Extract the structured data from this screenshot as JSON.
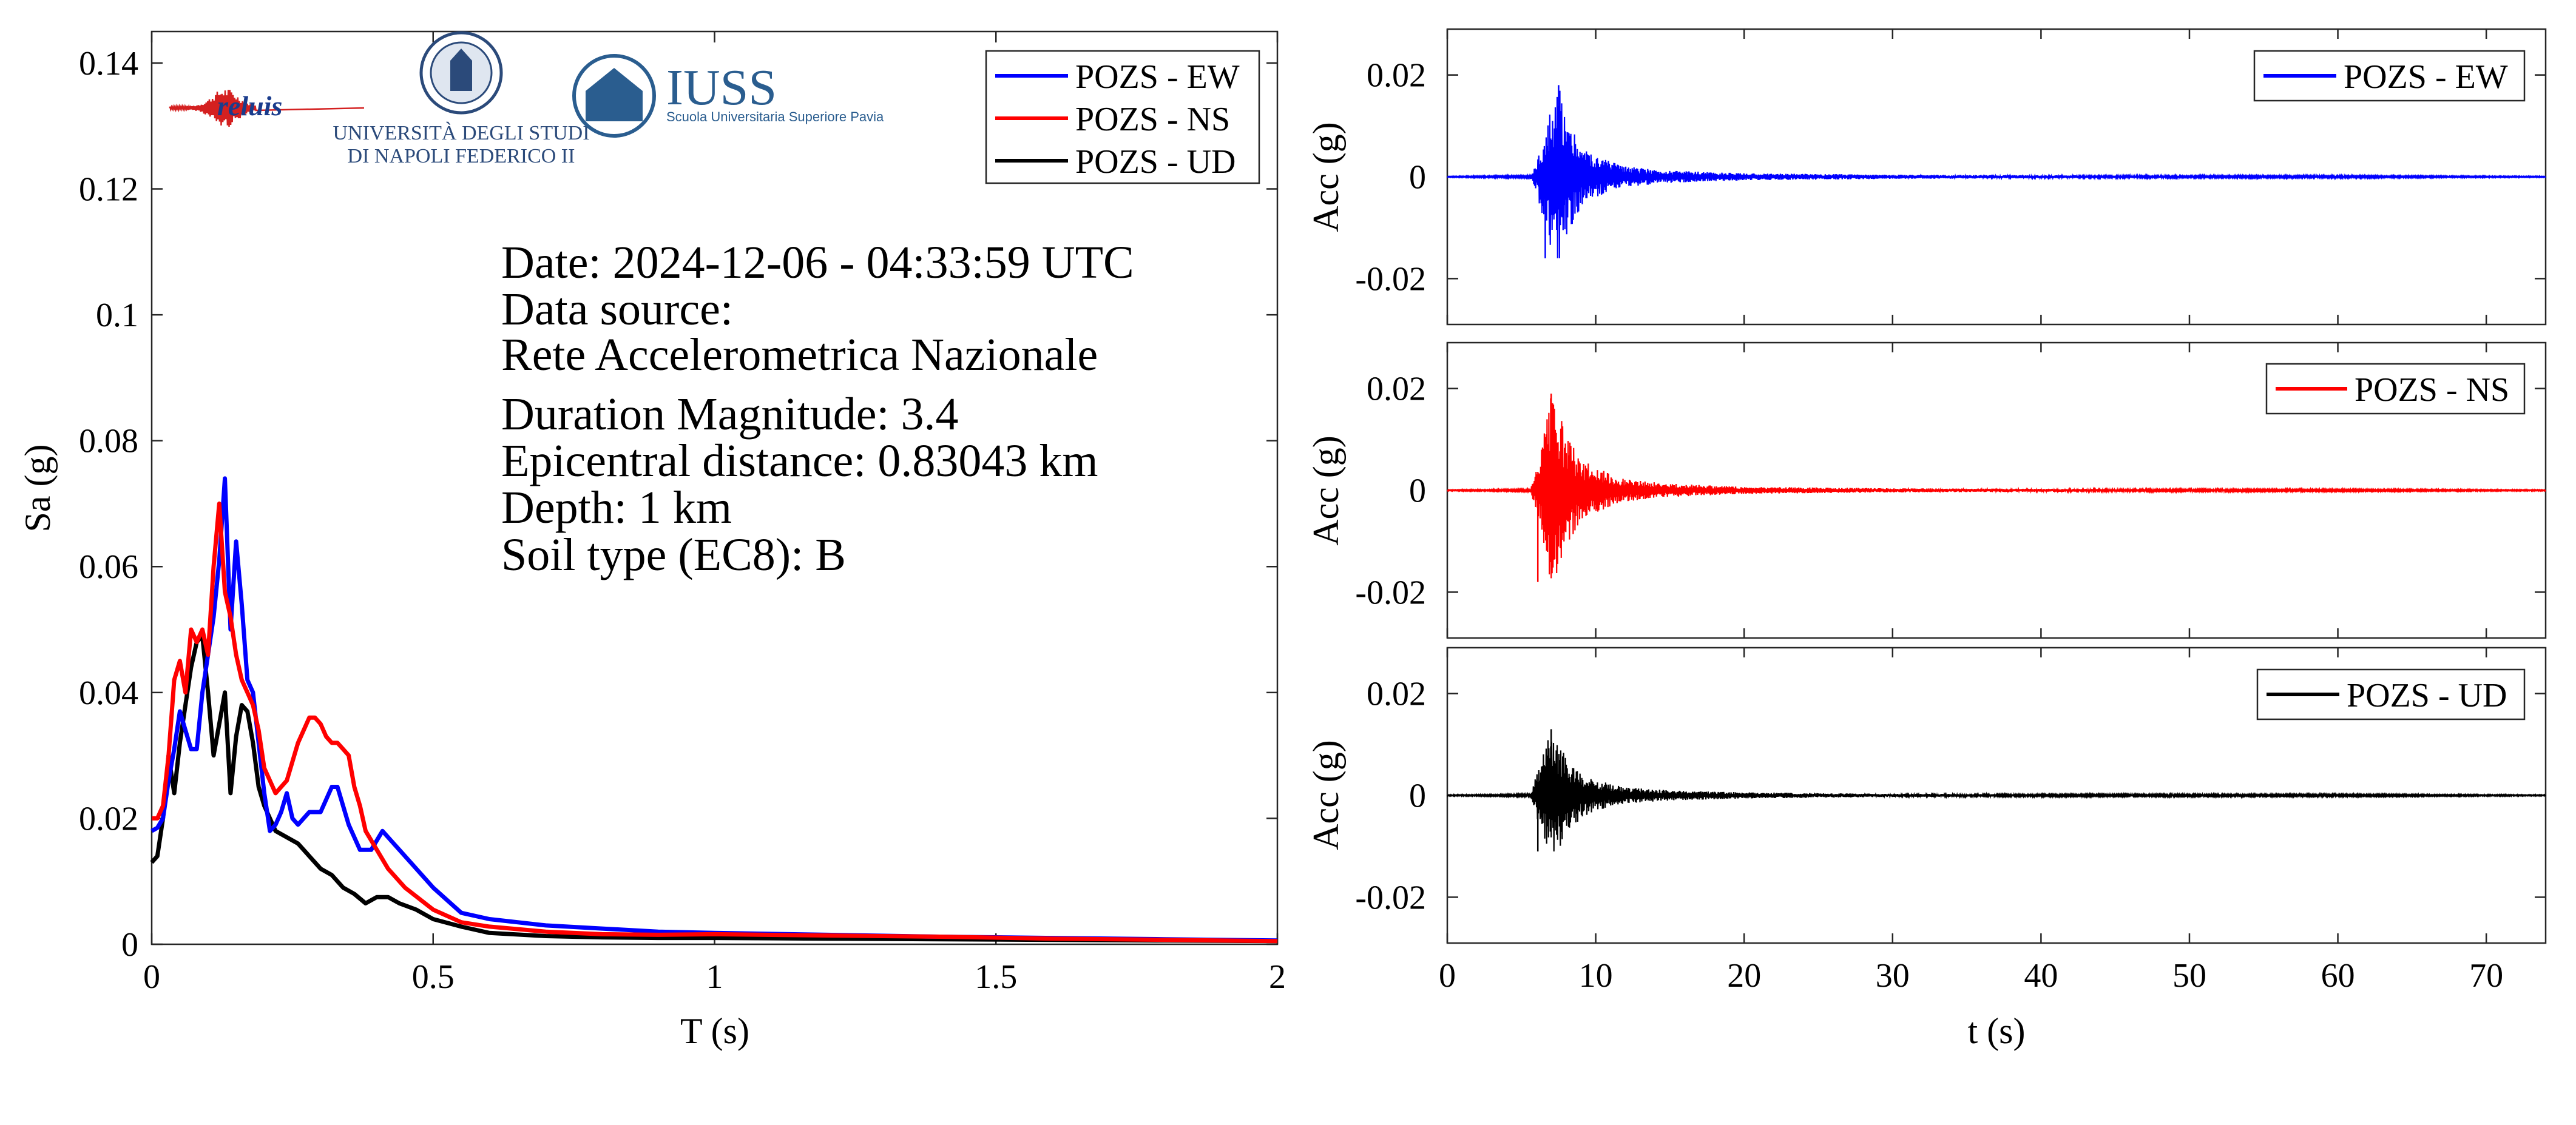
{
  "info": {
    "date": "Date: 2024-12-06 - 04:33:59 UTC",
    "source_label": "Data source:",
    "source_name": "Rete Accelerometrica Nazionale",
    "magnitude": "Duration Magnitude: 3.4",
    "distance": "Epicentral distance: 0.83043 km",
    "depth": "Depth: 1 km",
    "soil": "Soil type (EC8): B"
  },
  "logos": {
    "reluis": "reluis",
    "unina_line1": "UNIVERSITÀ DEGLI STUDI",
    "unina_line2": "DI NAPOLI FEDERICO II",
    "iuss_title": "IUSS",
    "iuss_subtitle": "Scuola Universitaria Superiore Pavia"
  },
  "colors": {
    "EW": "#0000ff",
    "NS": "#ff0000",
    "UD": "#000000"
  },
  "chart_data": [
    {
      "type": "line",
      "id": "spectrum",
      "xlabel": "T (s)",
      "ylabel": "Sa (g)",
      "xlim": [
        0,
        2
      ],
      "ylim": [
        0,
        0.145
      ],
      "xticks": [
        0,
        0.5,
        1,
        1.5,
        2
      ],
      "xtick_labels": [
        "0",
        "0.5",
        "1",
        "1.5",
        "2"
      ],
      "yticks": [
        0,
        0.02,
        0.04,
        0.06,
        0.08,
        0.1,
        0.12,
        0.14
      ],
      "ytick_labels": [
        "0",
        "0.02",
        "0.04",
        "0.06",
        "0.08",
        "0.1",
        "0.12",
        "0.14"
      ],
      "legend_position": "top-right",
      "series": [
        {
          "name": "POZS - EW",
          "color": "#0000ff",
          "x": [
            0,
            0.01,
            0.02,
            0.03,
            0.04,
            0.05,
            0.06,
            0.07,
            0.08,
            0.09,
            0.1,
            0.11,
            0.12,
            0.13,
            0.14,
            0.15,
            0.16,
            0.17,
            0.18,
            0.19,
            0.2,
            0.21,
            0.22,
            0.23,
            0.24,
            0.25,
            0.26,
            0.28,
            0.3,
            0.32,
            0.33,
            0.35,
            0.37,
            0.39,
            0.41,
            0.43,
            0.46,
            0.5,
            0.55,
            0.6,
            0.7,
            0.8,
            0.9,
            1.0,
            1.2,
            1.4,
            1.6,
            1.8,
            2.0
          ],
          "y": [
            0.018,
            0.0185,
            0.02,
            0.026,
            0.031,
            0.037,
            0.034,
            0.031,
            0.031,
            0.04,
            0.046,
            0.052,
            0.061,
            0.074,
            0.05,
            0.064,
            0.054,
            0.042,
            0.04,
            0.032,
            0.024,
            0.018,
            0.019,
            0.021,
            0.024,
            0.02,
            0.019,
            0.021,
            0.021,
            0.025,
            0.025,
            0.019,
            0.015,
            0.015,
            0.018,
            0.016,
            0.013,
            0.009,
            0.005,
            0.004,
            0.003,
            0.0025,
            0.002,
            0.0018,
            0.0015,
            0.0012,
            0.001,
            0.0008,
            0.0006
          ]
        },
        {
          "name": "POZS - NS",
          "color": "#ff0000",
          "x": [
            0,
            0.01,
            0.02,
            0.03,
            0.04,
            0.05,
            0.06,
            0.07,
            0.08,
            0.09,
            0.1,
            0.11,
            0.12,
            0.13,
            0.14,
            0.15,
            0.16,
            0.17,
            0.18,
            0.19,
            0.2,
            0.22,
            0.24,
            0.26,
            0.28,
            0.29,
            0.3,
            0.31,
            0.32,
            0.33,
            0.34,
            0.35,
            0.36,
            0.37,
            0.38,
            0.4,
            0.42,
            0.45,
            0.5,
            0.55,
            0.6,
            0.7,
            0.8,
            0.9,
            1.0,
            1.2,
            1.4,
            1.6,
            1.8,
            2.0
          ],
          "y": [
            0.02,
            0.02,
            0.022,
            0.03,
            0.042,
            0.045,
            0.04,
            0.05,
            0.048,
            0.05,
            0.046,
            0.06,
            0.07,
            0.056,
            0.052,
            0.046,
            0.042,
            0.04,
            0.038,
            0.034,
            0.028,
            0.024,
            0.026,
            0.032,
            0.036,
            0.036,
            0.035,
            0.033,
            0.032,
            0.032,
            0.031,
            0.03,
            0.025,
            0.022,
            0.018,
            0.015,
            0.012,
            0.009,
            0.0055,
            0.0035,
            0.0028,
            0.002,
            0.0016,
            0.0015,
            0.0016,
            0.0014,
            0.0012,
            0.0009,
            0.0007,
            0.0005
          ]
        },
        {
          "name": "POZS - UD",
          "color": "#000000",
          "x": [
            0,
            0.01,
            0.02,
            0.03,
            0.04,
            0.05,
            0.06,
            0.07,
            0.08,
            0.09,
            0.1,
            0.11,
            0.12,
            0.13,
            0.14,
            0.15,
            0.16,
            0.17,
            0.18,
            0.19,
            0.2,
            0.22,
            0.24,
            0.26,
            0.28,
            0.3,
            0.32,
            0.34,
            0.36,
            0.38,
            0.4,
            0.42,
            0.44,
            0.47,
            0.5,
            0.55,
            0.6,
            0.7,
            0.8,
            0.9,
            1.0,
            1.2,
            1.4,
            1.6,
            1.8,
            2.0
          ],
          "y": [
            0.013,
            0.014,
            0.02,
            0.03,
            0.024,
            0.032,
            0.038,
            0.044,
            0.048,
            0.049,
            0.04,
            0.03,
            0.035,
            0.04,
            0.024,
            0.033,
            0.038,
            0.037,
            0.032,
            0.025,
            0.022,
            0.018,
            0.017,
            0.016,
            0.014,
            0.012,
            0.011,
            0.009,
            0.008,
            0.0065,
            0.0075,
            0.0075,
            0.0065,
            0.0055,
            0.004,
            0.0028,
            0.0018,
            0.0013,
            0.0011,
            0.001,
            0.001,
            0.0009,
            0.0008,
            0.0007,
            0.0006,
            0.0005
          ]
        }
      ]
    },
    {
      "type": "line",
      "id": "accel-ew",
      "xlabel": "",
      "ylabel": "Acc (g)",
      "xlim": [
        0,
        74
      ],
      "ylim": [
        -0.029,
        0.029
      ],
      "yticks": [
        -0.02,
        0,
        0.02
      ],
      "ytick_labels": [
        "-0.02",
        "0",
        "0.02"
      ],
      "legend_position": "top-right",
      "series": [
        {
          "name": "POZS - EW",
          "color": "#0000ff",
          "envelope_x": [
            0,
            5.6,
            6.0,
            6.5,
            7.0,
            7.5,
            8.0,
            9.0,
            10.0,
            12.0,
            15.0,
            20.0,
            30.0,
            40.0,
            50.0,
            60.0,
            74.0
          ],
          "envelope_y": [
            0.0001,
            0.0002,
            0.003,
            0.009,
            0.014,
            0.018,
            0.012,
            0.006,
            0.004,
            0.002,
            0.0012,
            0.0007,
            0.0004,
            0.0003,
            0.0002,
            0.0002,
            0.0001
          ],
          "peak_positive": 0.018,
          "peak_negative": -0.016
        }
      ]
    },
    {
      "type": "line",
      "id": "accel-ns",
      "xlabel": "",
      "ylabel": "Acc (g)",
      "xlim": [
        0,
        74
      ],
      "ylim": [
        -0.029,
        0.029
      ],
      "yticks": [
        -0.02,
        0,
        0.02
      ],
      "ytick_labels": [
        "-0.02",
        "0",
        "0.02"
      ],
      "legend_position": "top-right",
      "series": [
        {
          "name": "POZS - NS",
          "color": "#ff0000",
          "envelope_x": [
            0,
            5.6,
            6.0,
            6.5,
            7.0,
            7.5,
            8.0,
            9.0,
            10.0,
            12.0,
            15.0,
            20.0,
            30.0,
            40.0,
            50.0,
            60.0,
            74.0
          ],
          "envelope_y": [
            0.0001,
            0.0002,
            0.004,
            0.011,
            0.019,
            0.016,
            0.011,
            0.006,
            0.0045,
            0.0022,
            0.0013,
            0.0007,
            0.0004,
            0.0003,
            0.0002,
            0.0002,
            0.0001
          ],
          "peak_positive": 0.019,
          "peak_negative": -0.018
        }
      ]
    },
    {
      "type": "line",
      "id": "accel-ud",
      "xlabel": "t (s)",
      "ylabel": "Acc (g)",
      "xlim": [
        0,
        74
      ],
      "ylim": [
        -0.029,
        0.029
      ],
      "xticks": [
        0,
        10,
        20,
        30,
        40,
        50,
        60,
        70
      ],
      "xtick_labels": [
        "0",
        "10",
        "20",
        "30",
        "40",
        "50",
        "60",
        "70"
      ],
      "yticks": [
        -0.02,
        0,
        0.02
      ],
      "ytick_labels": [
        "-0.02",
        "0",
        "0.02"
      ],
      "legend_position": "top-right",
      "series": [
        {
          "name": "POZS - UD",
          "color": "#000000",
          "envelope_x": [
            0,
            5.6,
            6.0,
            6.5,
            7.0,
            7.5,
            8.0,
            9.0,
            10.0,
            12.0,
            15.0,
            20.0,
            30.0,
            40.0,
            50.0,
            60.0,
            74.0
          ],
          "envelope_y": [
            0.0001,
            0.0002,
            0.004,
            0.009,
            0.013,
            0.011,
            0.008,
            0.0045,
            0.003,
            0.0016,
            0.001,
            0.0006,
            0.0003,
            0.0002,
            0.0002,
            0.0002,
            0.0001
          ],
          "peak_positive": 0.013,
          "peak_negative": -0.011
        }
      ]
    }
  ]
}
